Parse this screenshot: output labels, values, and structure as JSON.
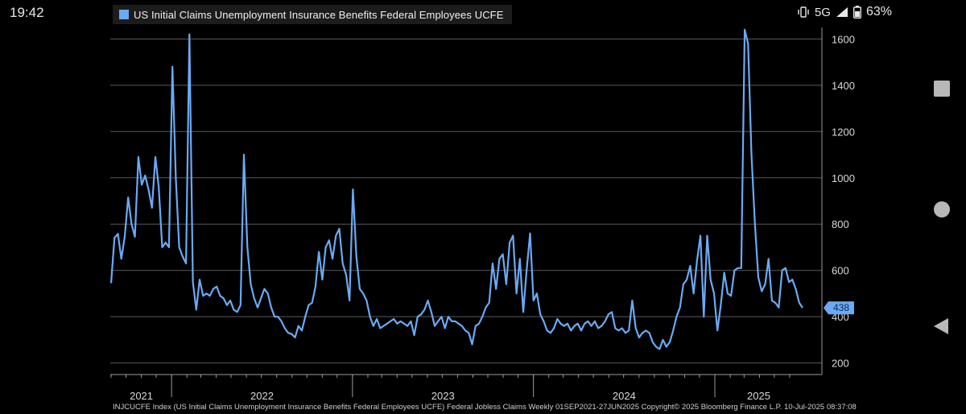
{
  "status_bar": {
    "time": "19:42",
    "network": "5G",
    "battery": "63%"
  },
  "legend": {
    "label": "US Initial Claims Unemployment Insurance Benefits Federal Employees UCFE",
    "color": "#6aaaf4"
  },
  "footer": {
    "text": "INJCUCFE Index (US Initial Claims Unemployment Insurance Benefits Federal Employees UCFE) Federal Jobless Claims  Weekly 01SEP2021-27JUN2025  Copyright© 2025 Bloomberg Finance L.P.   10-Jul-2025 08:37:08"
  },
  "chart_data": {
    "type": "line",
    "title": "",
    "xlabel": "",
    "ylabel": "",
    "x_range": [
      "2021-09-01",
      "2025-06-27"
    ],
    "ylim": [
      150,
      1650
    ],
    "yticks": [
      200,
      400,
      600,
      800,
      1000,
      1200,
      1400,
      1600
    ],
    "x_year_labels": [
      "2021",
      "2022",
      "2023",
      "2024",
      "2025"
    ],
    "grid": true,
    "last_value_label": "438",
    "series": [
      {
        "name": "US Initial Claims Unemployment Insurance Benefits Federal Employees UCFE",
        "color": "#6aaaf4",
        "values": [
          545,
          740,
          758,
          650,
          744,
          915,
          800,
          745,
          1090,
          970,
          1010,
          950,
          870,
          1090,
          960,
          700,
          720,
          700,
          1480,
          1000,
          700,
          660,
          630,
          1620,
          550,
          430,
          560,
          490,
          500,
          490,
          520,
          530,
          490,
          480,
          450,
          470,
          430,
          420,
          450,
          1100,
          700,
          540,
          480,
          440,
          480,
          520,
          500,
          440,
          400,
          400,
          380,
          350,
          330,
          325,
          310,
          360,
          340,
          400,
          450,
          460,
          530,
          680,
          560,
          700,
          730,
          650,
          750,
          780,
          630,
          580,
          470,
          950,
          660,
          520,
          500,
          470,
          400,
          360,
          390,
          350,
          360,
          370,
          380,
          390,
          370,
          380,
          370,
          360,
          380,
          320,
          400,
          410,
          430,
          470,
          420,
          360,
          380,
          400,
          350,
          400,
          380,
          380,
          370,
          360,
          340,
          330,
          280,
          360,
          370,
          400,
          440,
          460,
          630,
          520,
          650,
          670,
          540,
          720,
          750,
          500,
          650,
          420,
          600,
          760,
          470,
          500,
          410,
          380,
          340,
          330,
          350,
          390,
          370,
          360,
          370,
          340,
          360,
          370,
          340,
          370,
          380,
          360,
          380,
          350,
          360,
          380,
          410,
          420,
          350,
          340,
          350,
          330,
          340,
          470,
          350,
          310,
          330,
          340,
          330,
          290,
          270,
          260,
          300,
          270,
          290,
          340,
          400,
          440,
          540,
          560,
          620,
          500,
          640,
          750,
          400,
          750,
          560,
          500,
          340,
          450,
          590,
          500,
          490,
          600,
          610,
          610,
          1640,
          1580,
          1100,
          800,
          570,
          510,
          540,
          650,
          470,
          460,
          440,
          600,
          610,
          550,
          560,
          520,
          460,
          438
        ]
      }
    ]
  }
}
